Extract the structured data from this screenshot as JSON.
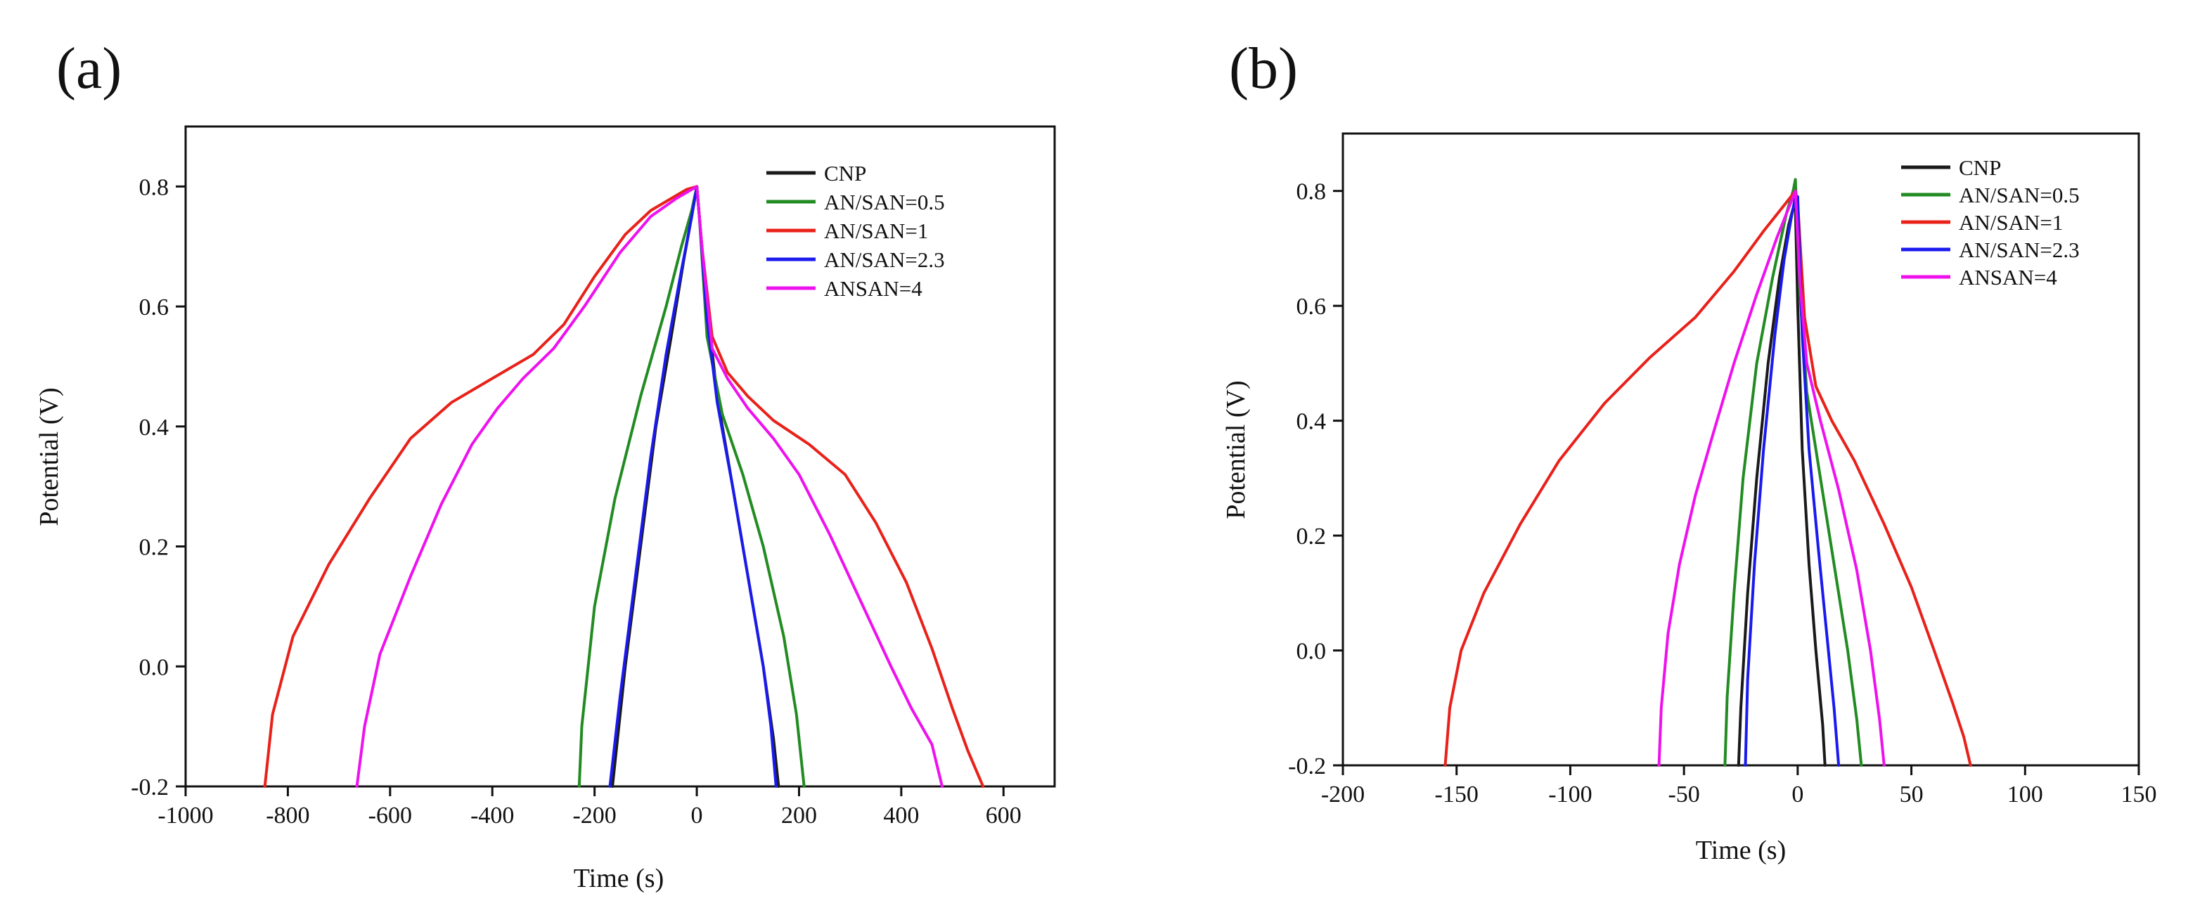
{
  "chart_data": [
    {
      "type": "line",
      "panel_label": "(a)",
      "xlabel": "Time (s)",
      "ylabel": "Potential (V)",
      "xlim": [
        -1000,
        700
      ],
      "ylim": [
        -0.2,
        0.9
      ],
      "x_ticks": [
        -1000,
        -800,
        -600,
        -400,
        -200,
        0,
        200,
        400,
        600
      ],
      "x_tick_labels": [
        "-1000",
        "-800",
        "-600",
        "-400",
        "-200",
        "0",
        "200",
        "400",
        "600"
      ],
      "y_ticks": [
        -0.2,
        0.0,
        0.2,
        0.4,
        0.6,
        0.8
      ],
      "y_tick_labels": [
        "-0.2",
        "0.0",
        "0.2",
        "0.4",
        "0.6",
        "0.8"
      ],
      "grid": false,
      "legend_position": "top-right",
      "series": [
        {
          "name": "CNP",
          "color": "#1a1a1a",
          "x": [
            -165,
            -140,
            -110,
            -80,
            -50,
            -25,
            -10,
            0,
            5,
            20,
            40,
            70,
            100,
            130,
            150,
            160
          ],
          "y": [
            -0.2,
            0.0,
            0.2,
            0.4,
            0.55,
            0.68,
            0.75,
            0.8,
            0.75,
            0.6,
            0.45,
            0.3,
            0.15,
            0.0,
            -0.12,
            -0.2
          ]
        },
        {
          "name": "AN/SAN=0.5",
          "color": "#228b22",
          "x": [
            -230,
            -225,
            -200,
            -160,
            -110,
            -60,
            -30,
            -10,
            0,
            5,
            20,
            50,
            90,
            130,
            170,
            195,
            210
          ],
          "y": [
            -0.2,
            -0.1,
            0.1,
            0.28,
            0.45,
            0.6,
            0.7,
            0.76,
            0.8,
            0.75,
            0.55,
            0.42,
            0.32,
            0.2,
            0.05,
            -0.08,
            -0.2
          ]
        },
        {
          "name": "AN/SAN=1",
          "color": "#e8211a",
          "x": [
            -845,
            -830,
            -790,
            -720,
            -640,
            -560,
            -480,
            -400,
            -320,
            -260,
            -200,
            -140,
            -90,
            -50,
            -20,
            0,
            10,
            30,
            60,
            100,
            150,
            220,
            290,
            350,
            410,
            460,
            500,
            530,
            560
          ],
          "y": [
            -0.2,
            -0.08,
            0.05,
            0.17,
            0.28,
            0.38,
            0.44,
            0.48,
            0.52,
            0.57,
            0.65,
            0.72,
            0.76,
            0.78,
            0.795,
            0.8,
            0.7,
            0.55,
            0.49,
            0.45,
            0.41,
            0.37,
            0.32,
            0.24,
            0.14,
            0.03,
            -0.07,
            -0.14,
            -0.2
          ]
        },
        {
          "name": "AN/SAN=2.3",
          "color": "#1a1aee",
          "x": [
            -170,
            -150,
            -120,
            -90,
            -60,
            -30,
            -10,
            0,
            5,
            20,
            40,
            70,
            100,
            130,
            145,
            155
          ],
          "y": [
            -0.2,
            -0.05,
            0.15,
            0.35,
            0.52,
            0.66,
            0.75,
            0.8,
            0.75,
            0.58,
            0.44,
            0.3,
            0.15,
            0.0,
            -0.1,
            -0.2
          ]
        },
        {
          "name": "ANSAN=4",
          "color": "#ee11ee",
          "x": [
            -665,
            -650,
            -620,
            -560,
            -500,
            -440,
            -390,
            -340,
            -280,
            -220,
            -150,
            -90,
            -40,
            -10,
            0,
            10,
            30,
            60,
            100,
            150,
            200,
            260,
            320,
            380,
            420,
            460,
            480
          ],
          "y": [
            -0.2,
            -0.1,
            0.02,
            0.15,
            0.27,
            0.37,
            0.43,
            0.48,
            0.53,
            0.6,
            0.69,
            0.75,
            0.78,
            0.795,
            0.8,
            0.7,
            0.53,
            0.48,
            0.43,
            0.38,
            0.32,
            0.22,
            0.11,
            0.0,
            -0.07,
            -0.13,
            -0.2
          ]
        }
      ]
    },
    {
      "type": "line",
      "panel_label": "(b)",
      "xlabel": "Time (s)",
      "ylabel": "Potential (V)",
      "xlim": [
        -200,
        150
      ],
      "ylim": [
        -0.2,
        0.9
      ],
      "x_ticks": [
        -200,
        -150,
        -100,
        -50,
        0,
        50,
        100,
        150
      ],
      "x_tick_labels": [
        "-200",
        "-150",
        "-100",
        "-50",
        "0",
        "50",
        "100",
        "150"
      ],
      "y_ticks": [
        -0.2,
        0.0,
        0.2,
        0.4,
        0.6,
        0.8
      ],
      "y_tick_labels": [
        "-0.2",
        "0.0",
        "0.2",
        "0.4",
        "0.6",
        "0.8"
      ],
      "grid": false,
      "legend_position": "top-right",
      "series": [
        {
          "name": "CNP",
          "color": "#1a1a1a",
          "x": [
            -26,
            -25,
            -22,
            -18,
            -13,
            -8,
            -4,
            -2,
            -1,
            0,
            2,
            5,
            8,
            11,
            12
          ],
          "y": [
            -0.2,
            -0.1,
            0.1,
            0.3,
            0.5,
            0.65,
            0.74,
            0.77,
            0.77,
            0.6,
            0.35,
            0.15,
            0.0,
            -0.13,
            -0.2
          ]
        },
        {
          "name": "AN/SAN=0.5",
          "color": "#228b22",
          "x": [
            -32,
            -31,
            -28,
            -24,
            -18,
            -11,
            -5,
            -2,
            -1,
            1,
            4,
            10,
            16,
            22,
            26,
            28
          ],
          "y": [
            -0.2,
            -0.08,
            0.1,
            0.3,
            0.5,
            0.65,
            0.76,
            0.8,
            0.82,
            0.62,
            0.45,
            0.3,
            0.15,
            0.0,
            -0.12,
            -0.2
          ]
        },
        {
          "name": "AN/SAN=1",
          "color": "#e8211a",
          "x": [
            -155,
            -153,
            -148,
            -138,
            -122,
            -105,
            -85,
            -65,
            -45,
            -28,
            -15,
            -5,
            -1,
            0,
            3,
            8,
            15,
            25,
            38,
            50,
            60,
            68,
            73,
            76
          ],
          "y": [
            -0.2,
            -0.1,
            0.0,
            0.1,
            0.22,
            0.33,
            0.43,
            0.51,
            0.58,
            0.66,
            0.73,
            0.78,
            0.8,
            0.78,
            0.58,
            0.46,
            0.4,
            0.33,
            0.22,
            0.11,
            0.0,
            -0.09,
            -0.15,
            -0.2
          ]
        },
        {
          "name": "AN/SAN=2.3",
          "color": "#1a1aee",
          "x": [
            -23,
            -22,
            -19,
            -15,
            -10,
            -6,
            -3,
            -1,
            0,
            2,
            5,
            9,
            13,
            16,
            18
          ],
          "y": [
            -0.2,
            -0.05,
            0.15,
            0.35,
            0.55,
            0.68,
            0.75,
            0.79,
            0.79,
            0.55,
            0.35,
            0.18,
            0.02,
            -0.1,
            -0.2
          ]
        },
        {
          "name": "ANSAN=4",
          "color": "#ee11ee",
          "x": [
            -61,
            -60,
            -57,
            -52,
            -45,
            -37,
            -28,
            -18,
            -9,
            -3,
            -1,
            1,
            4,
            10,
            18,
            26,
            32,
            36,
            38
          ],
          "y": [
            -0.2,
            -0.1,
            0.03,
            0.15,
            0.27,
            0.38,
            0.5,
            0.62,
            0.72,
            0.78,
            0.8,
            0.64,
            0.5,
            0.4,
            0.28,
            0.14,
            0.0,
            -0.12,
            -0.2
          ]
        }
      ]
    }
  ]
}
